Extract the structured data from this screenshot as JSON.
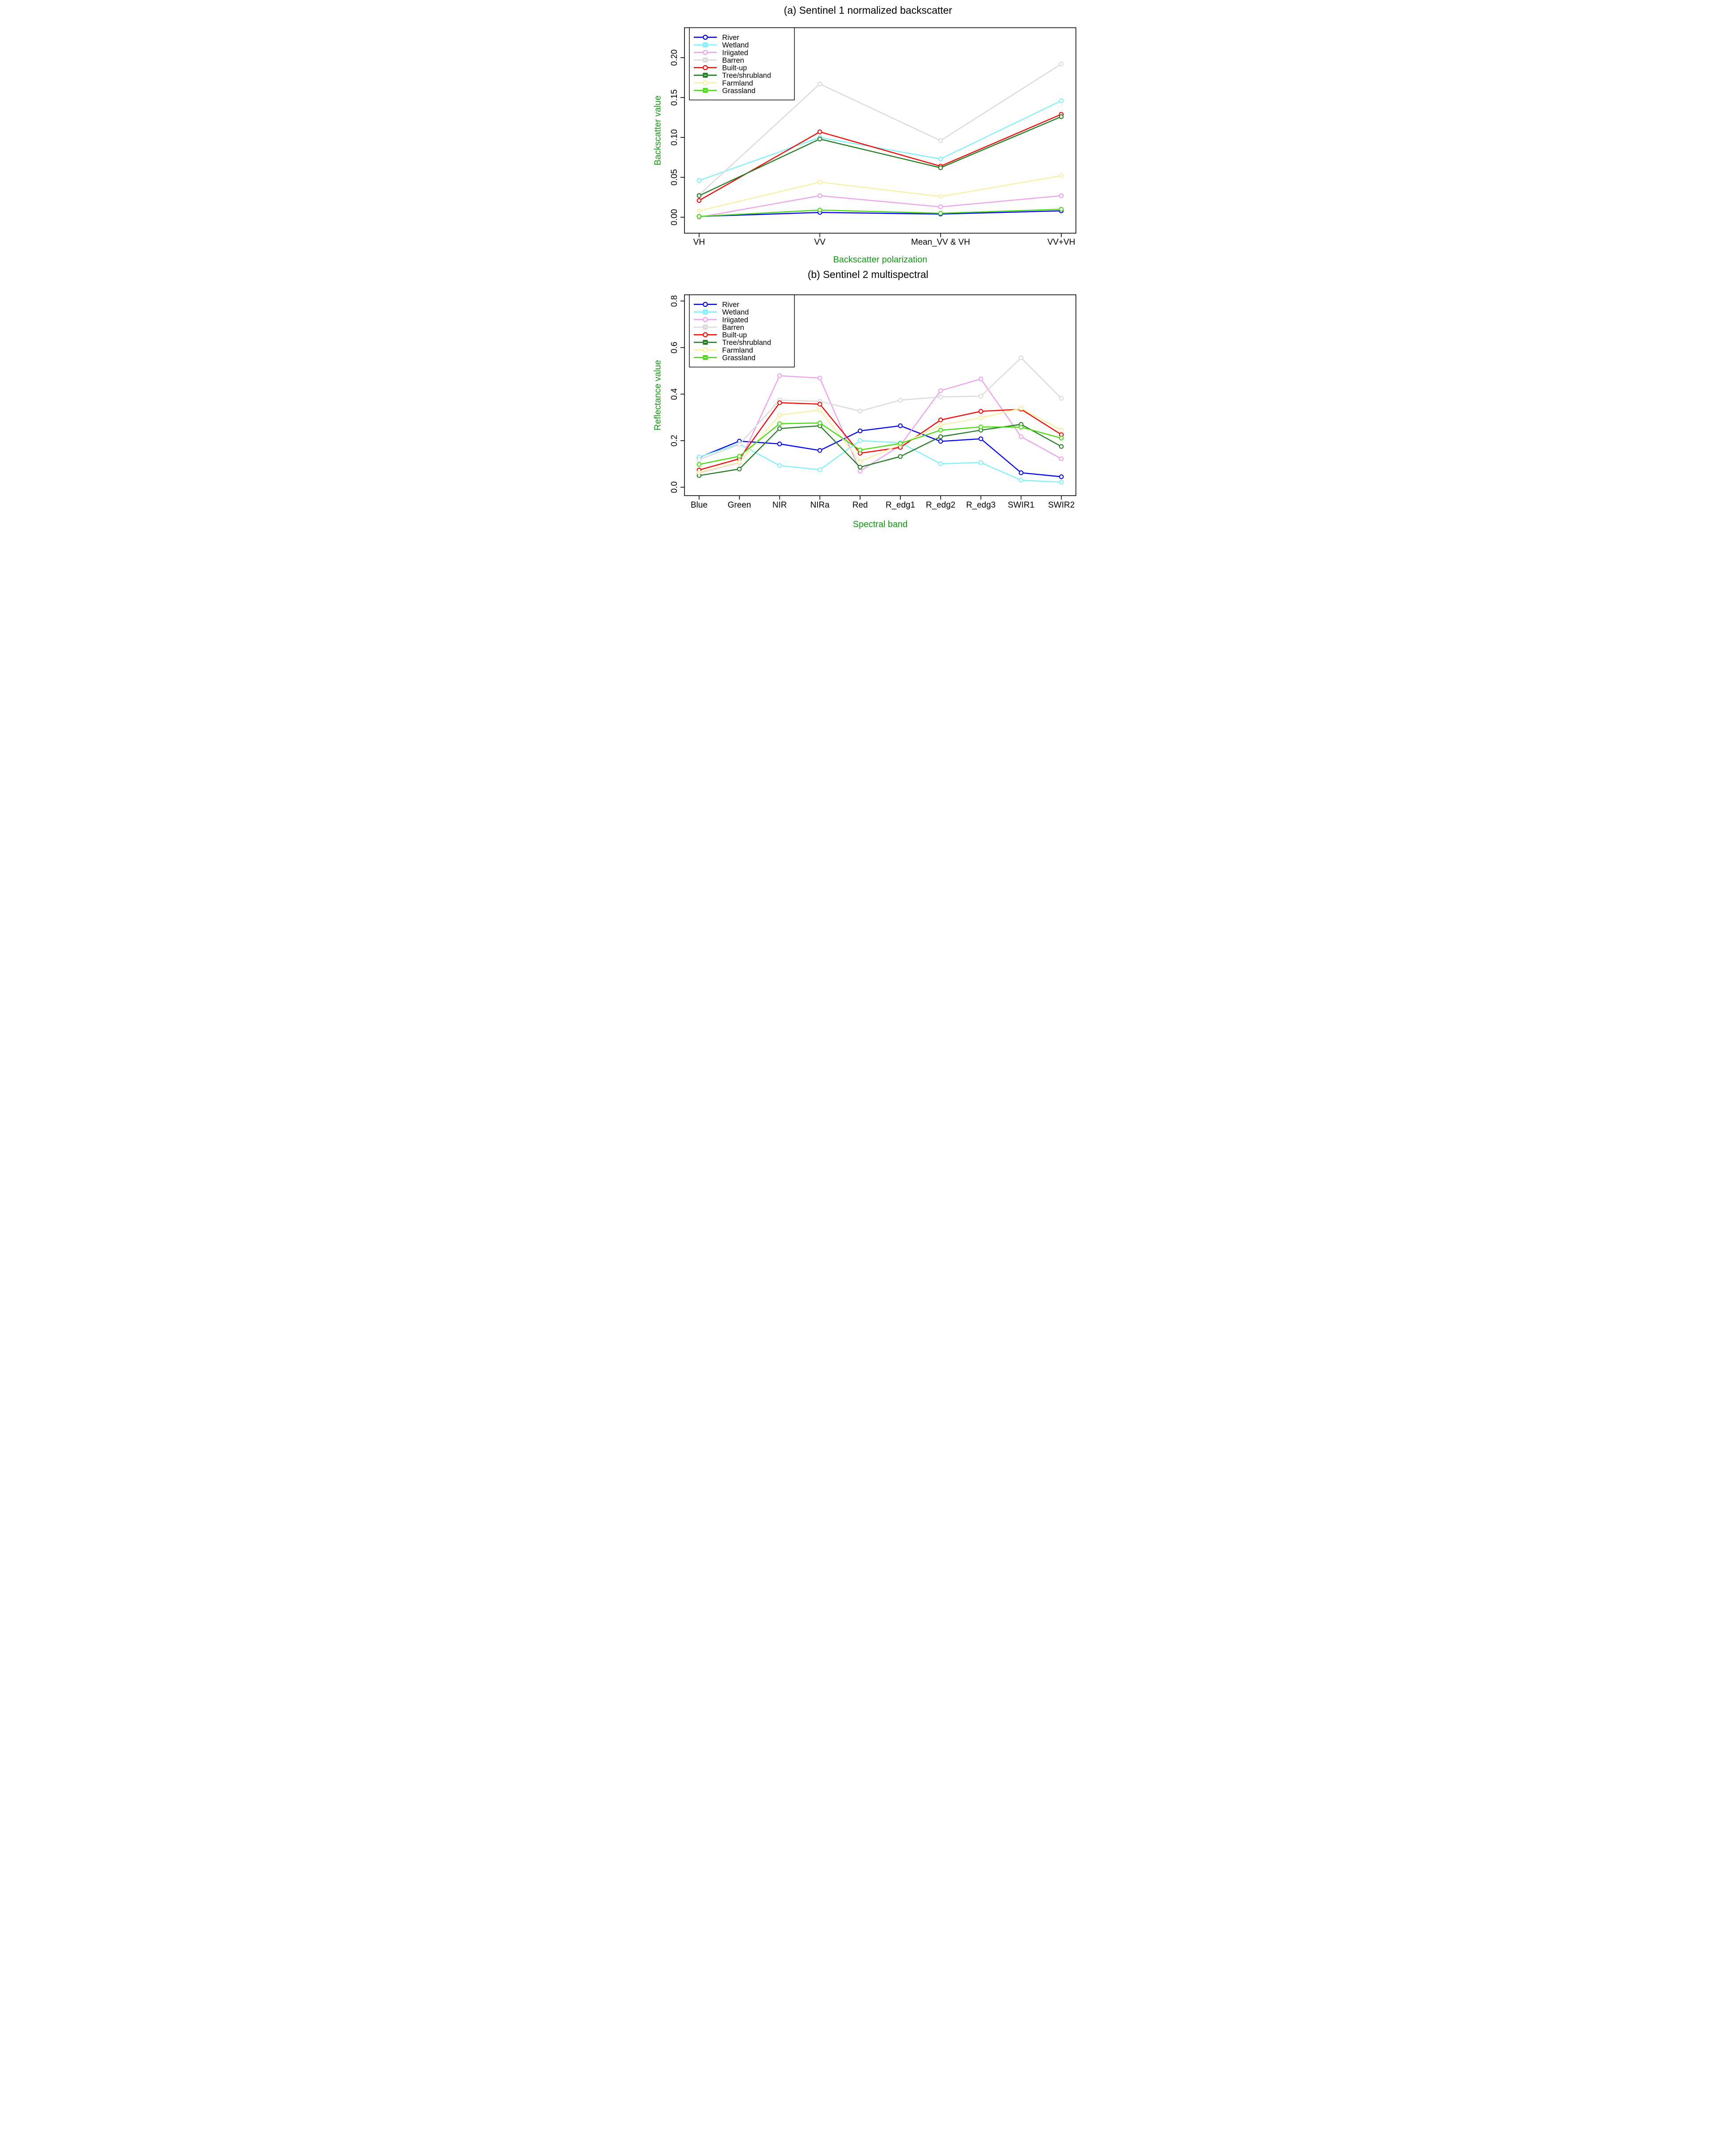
{
  "figure_colors": {
    "axis_label_green": "#0D9C0D",
    "axis_line_black": "#000000",
    "background": "#FFFFFF"
  },
  "chart_data": [
    {
      "type": "line",
      "panel": "a",
      "title": "(a) Sentinel 1 normalized backscatter",
      "xlabel": "Backscatter polarization",
      "ylabel": "Backscatter value",
      "categories": [
        "VH",
        "VV",
        "Mean_VV & VH",
        "VV+VH"
      ],
      "ytick_labels": [
        "0.00",
        "0.05",
        "0.10",
        "0.15",
        "0.20"
      ],
      "yticks": [
        0.0,
        0.05,
        0.1,
        0.15,
        0.2
      ],
      "ylim": [
        -0.02,
        0.235
      ],
      "grid": false,
      "legend_position": "top-left",
      "series": [
        {
          "name": "River",
          "color": "#0000FF",
          "marker": "circle",
          "values": [
            0.001,
            0.006,
            0.004,
            0.008
          ]
        },
        {
          "name": "Wetland",
          "color": "#80F0FF",
          "marker": "square",
          "values": [
            0.046,
            0.1,
            0.073,
            0.146
          ]
        },
        {
          "name": "Iriigated",
          "color": "#EFA0EF",
          "marker": "circle",
          "values": [
            0.0,
            0.027,
            0.013,
            0.027
          ]
        },
        {
          "name": "Barren",
          "color": "#DADADA",
          "marker": "square",
          "values": [
            0.028,
            0.167,
            0.096,
            0.192
          ]
        },
        {
          "name": "Built-up",
          "color": "#FF0000",
          "marker": "circle",
          "values": [
            0.021,
            0.107,
            0.064,
            0.129
          ]
        },
        {
          "name": "Tree/shrubland",
          "color": "#217C21",
          "marker": "square",
          "values": [
            0.027,
            0.098,
            0.062,
            0.126
          ]
        },
        {
          "name": "Farmland",
          "color": "#FAEFA0",
          "marker": "circle",
          "values": [
            0.008,
            0.044,
            0.026,
            0.052
          ]
        },
        {
          "name": "Grassland",
          "color": "#47DC0F",
          "marker": "square",
          "values": [
            0.001,
            0.009,
            0.005,
            0.01
          ]
        }
      ]
    },
    {
      "type": "line",
      "panel": "b",
      "title": "(b) Sentinel 2 multispectral",
      "xlabel": "Spectral band",
      "ylabel": "Reflectance value",
      "categories": [
        "Blue",
        "Green",
        "NIR",
        "NIRa",
        "Red",
        "R_edg1",
        "R_edg2",
        "R_edg3",
        "SWIR1",
        "SWIR2"
      ],
      "ytick_labels": [
        "0.0",
        "0.2",
        "0.4",
        "0.6",
        "0.8"
      ],
      "yticks": [
        0.0,
        0.2,
        0.4,
        0.6,
        0.8
      ],
      "ylim": [
        -0.06,
        0.86
      ],
      "grid": false,
      "legend_position": "top-left",
      "series": [
        {
          "name": "River",
          "color": "#0000FF",
          "marker": "circle",
          "values": [
            0.128,
            0.198,
            0.186,
            0.158,
            0.242,
            0.264,
            0.197,
            0.208,
            0.062,
            0.045
          ]
        },
        {
          "name": "Wetland",
          "color": "#80F0FF",
          "marker": "square",
          "values": [
            0.13,
            0.186,
            0.093,
            0.075,
            0.2,
            0.191,
            0.101,
            0.106,
            0.03,
            0.022
          ]
        },
        {
          "name": "Iriigated",
          "color": "#EFA0EF",
          "marker": "circle",
          "values": [
            0.062,
            0.106,
            0.479,
            0.469,
            0.069,
            0.18,
            0.415,
            0.465,
            0.217,
            0.122
          ]
        },
        {
          "name": "Barren",
          "color": "#DADADA",
          "marker": "square",
          "values": [
            0.118,
            0.184,
            0.374,
            0.369,
            0.327,
            0.374,
            0.388,
            0.391,
            0.556,
            0.382
          ]
        },
        {
          "name": "Built-up",
          "color": "#FF0000",
          "marker": "circle",
          "values": [
            0.074,
            0.122,
            0.363,
            0.357,
            0.146,
            0.171,
            0.289,
            0.326,
            0.335,
            0.226
          ]
        },
        {
          "name": "Tree/shrubland",
          "color": "#217C21",
          "marker": "square",
          "values": [
            0.05,
            0.078,
            0.252,
            0.264,
            0.086,
            0.132,
            0.217,
            0.245,
            0.27,
            0.175
          ]
        },
        {
          "name": "Farmland",
          "color": "#FAEFA0",
          "marker": "circle",
          "values": [
            0.064,
            0.107,
            0.31,
            0.332,
            0.11,
            0.183,
            0.267,
            0.298,
            0.339,
            0.245
          ]
        },
        {
          "name": "Grassland",
          "color": "#47DC0F",
          "marker": "square",
          "values": [
            0.098,
            0.133,
            0.273,
            0.276,
            0.16,
            0.188,
            0.245,
            0.259,
            0.258,
            0.211
          ]
        }
      ]
    }
  ]
}
